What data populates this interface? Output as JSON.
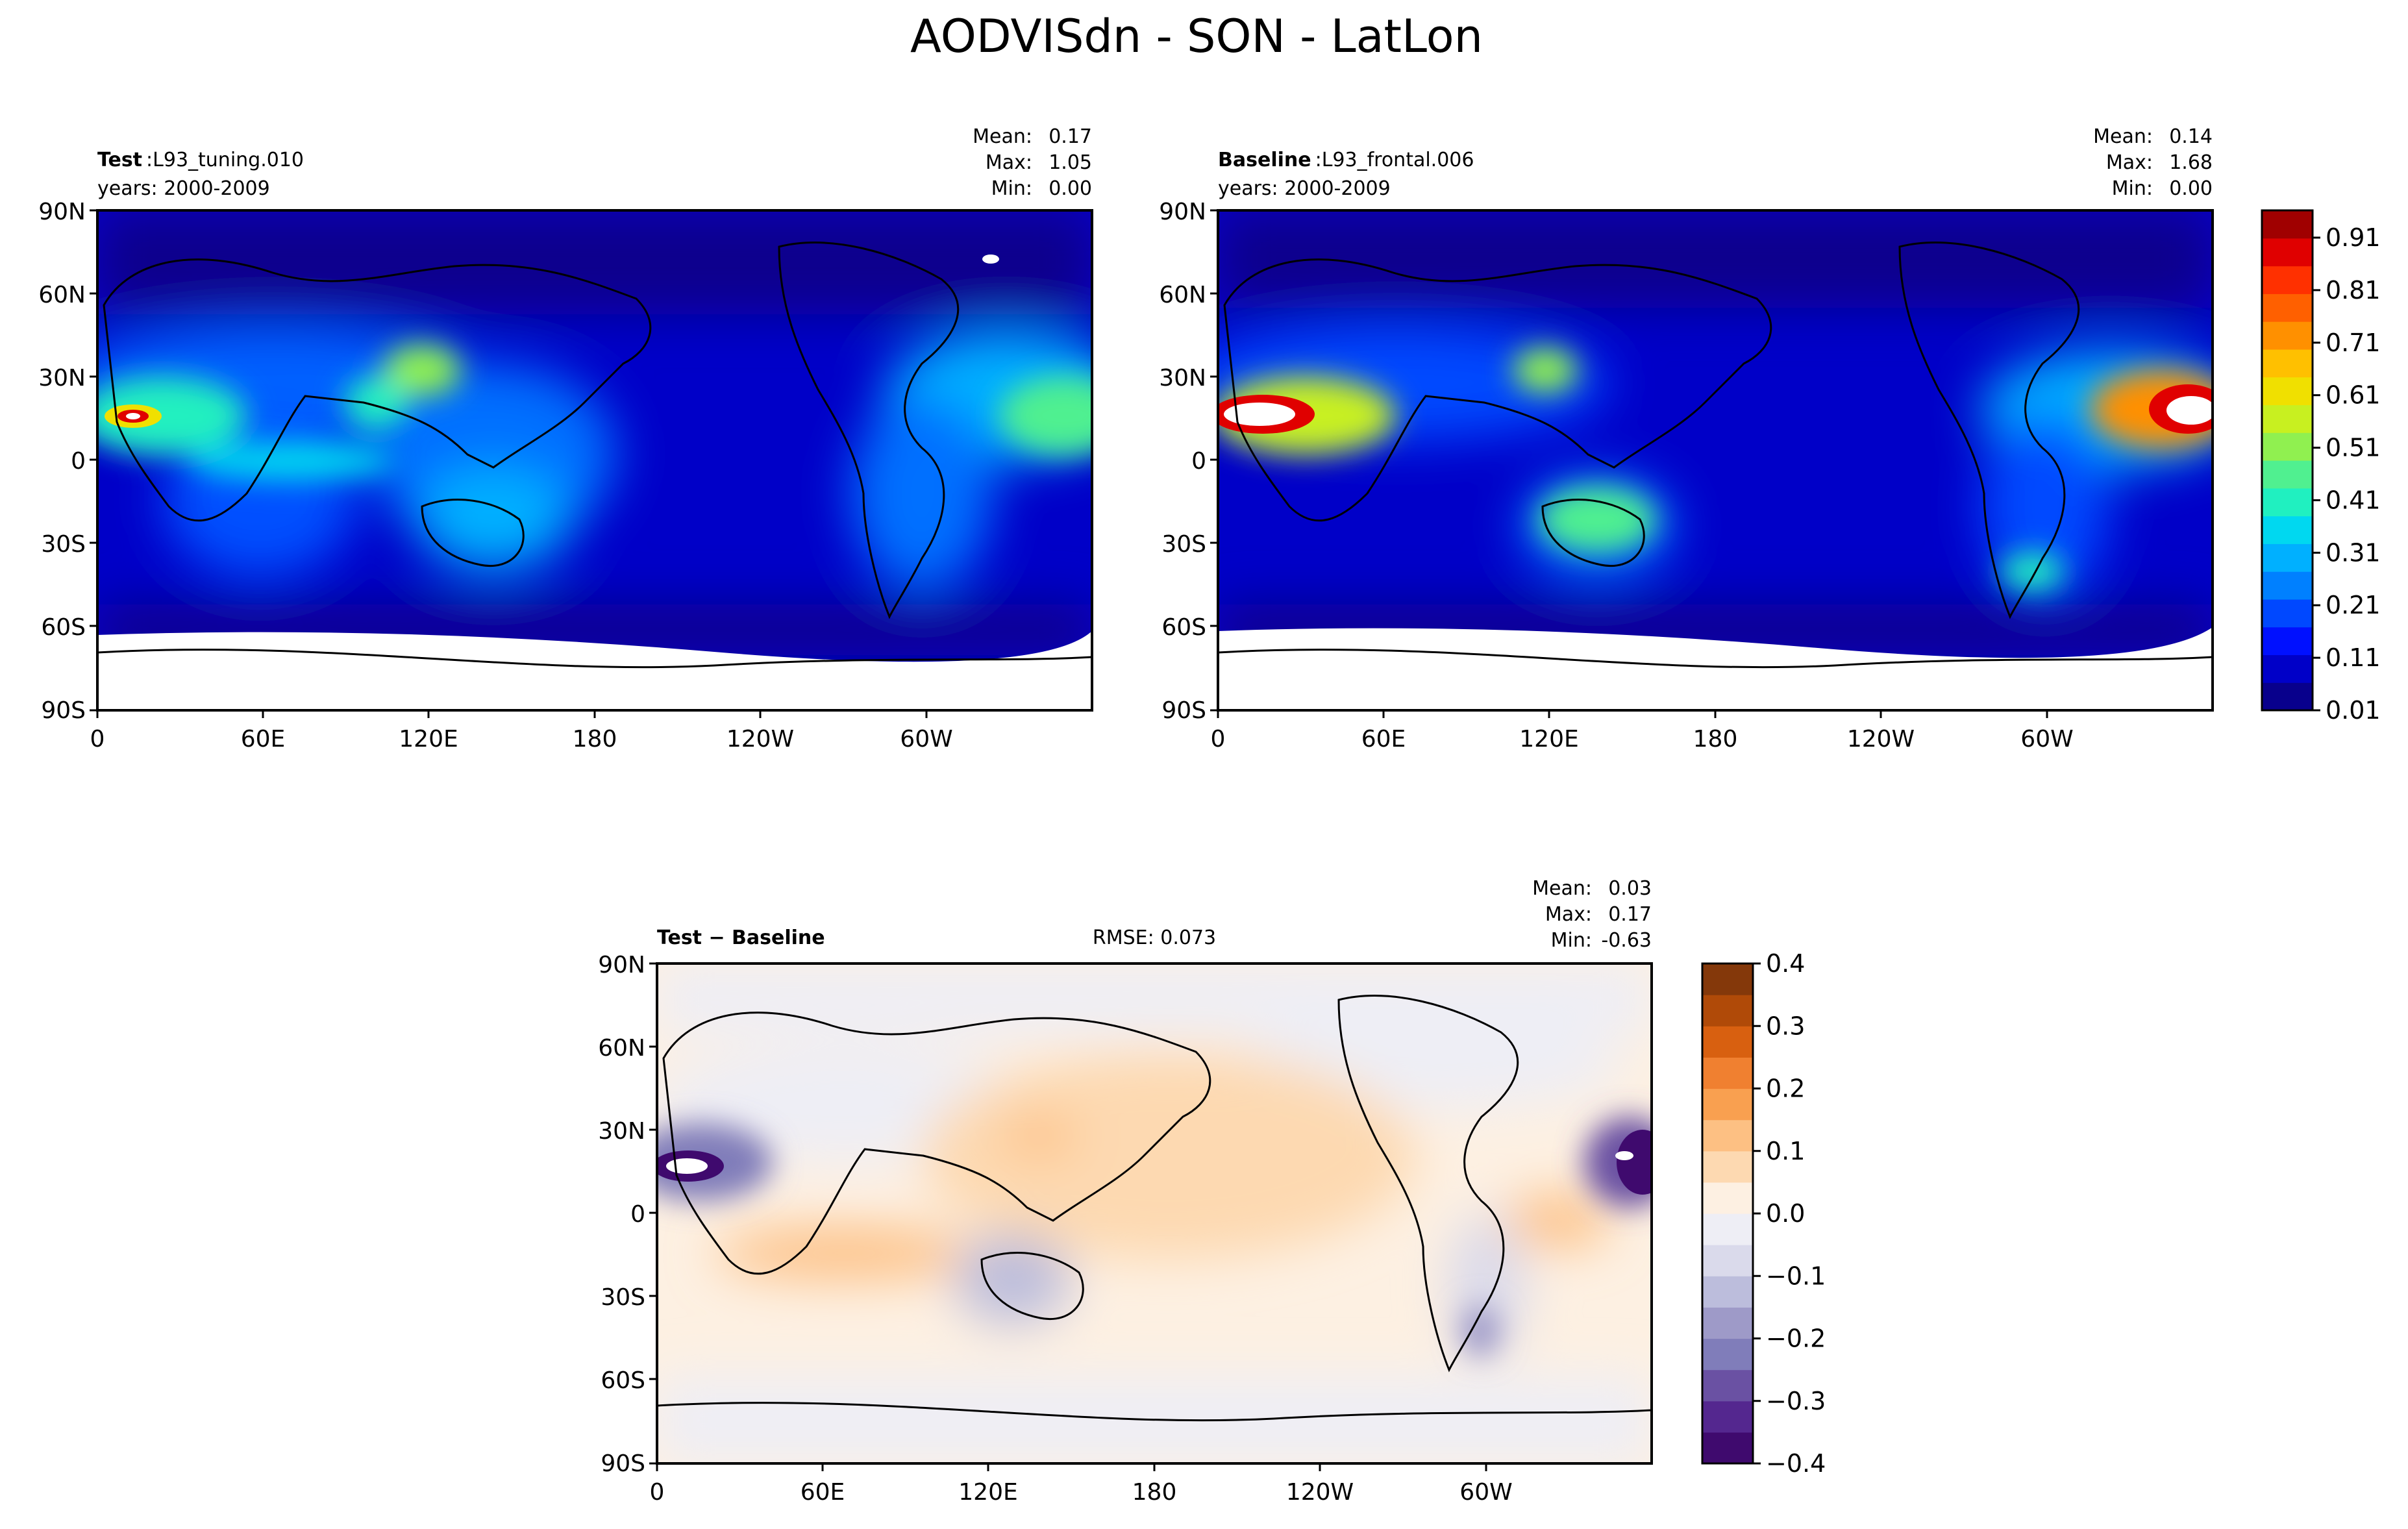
{
  "figure": {
    "title": "AODVISdn - SON - LatLon"
  },
  "panels": [
    {
      "label_bold": "Test",
      "label_rest": ":L93_tuning.010",
      "years": "years: 2000-2009",
      "stat_names": [
        "Mean:",
        "Max:",
        "Min:"
      ],
      "stat_values": [
        "0.17",
        "1.05",
        "0.00"
      ]
    },
    {
      "label_bold": "Baseline",
      "label_rest": ":L93_frontal.006",
      "years": "years: 2000-2009",
      "stat_names": [
        "Mean:",
        "Max:",
        "Min:"
      ],
      "stat_values": [
        "0.14",
        "1.68",
        "0.00"
      ]
    },
    {
      "label_bold": "Test − Baseline",
      "label_rest": "",
      "rmse": "RMSE: 0.073",
      "stat_names": [
        "Mean:",
        "Max:",
        "Min:"
      ],
      "stat_values": [
        "0.03",
        "0.17",
        "-0.63"
      ]
    }
  ],
  "axes": {
    "lat_ticks": [
      "90N",
      "60N",
      "30N",
      "0",
      "30S",
      "60S",
      "90S"
    ],
    "lon_ticks": [
      "0",
      "60E",
      "120E",
      "180",
      "120W",
      "60W"
    ]
  },
  "colorbars": {
    "main": {
      "ticks": [
        "0.91",
        "0.81",
        "0.71",
        "0.61",
        "0.51",
        "0.41",
        "0.31",
        "0.21",
        "0.11",
        "0.01"
      ],
      "colors": [
        "#08008c",
        "#0000c8",
        "#0010ff",
        "#0048ff",
        "#0080ff",
        "#00b0ff",
        "#00d8f0",
        "#20f0c0",
        "#50f090",
        "#90f050",
        "#c8f020",
        "#f0e000",
        "#ffc000",
        "#ff9000",
        "#ff6000",
        "#ff3000",
        "#e00000",
        "#a00000"
      ]
    },
    "diff": {
      "ticks": [
        "0.4",
        "0.3",
        "0.2",
        "0.1",
        "0.0",
        "−0.1",
        "−0.2",
        "−0.3",
        "−0.4"
      ],
      "colors": [
        "#3f0a6e",
        "#54278f",
        "#6a51a3",
        "#807dba",
        "#9e9ac8",
        "#bcbddc",
        "#dadaeb",
        "#eeeef5",
        "#fdf0e2",
        "#fdd9b1",
        "#fdc083",
        "#f9a050",
        "#f08030",
        "#d86010",
        "#b04a08",
        "#84380a"
      ]
    }
  },
  "chart_data": [
    {
      "type": "heatmap",
      "title": "Test : L93_tuning.010",
      "variable": "AODVISdn",
      "season": "SON",
      "xlabel": "",
      "ylabel": "",
      "xlim": [
        0,
        360
      ],
      "ylim": [
        -90,
        90
      ],
      "x_ticks": [
        "0",
        "60E",
        "120E",
        "180",
        "120W",
        "60W"
      ],
      "y_ticks": [
        "90N",
        "60N",
        "30N",
        "0",
        "30S",
        "60S",
        "90S"
      ],
      "mean": 0.17,
      "max": 1.05,
      "min": 0.0,
      "contour_levels": [
        0.01,
        0.06,
        0.11,
        0.16,
        0.21,
        0.26,
        0.31,
        0.36,
        0.41,
        0.46,
        0.51,
        0.56,
        0.61,
        0.66,
        0.71,
        0.76,
        0.81,
        0.86,
        0.91
      ]
    },
    {
      "type": "heatmap",
      "title": "Baseline : L93_frontal.006",
      "variable": "AODVISdn",
      "season": "SON",
      "xlim": [
        0,
        360
      ],
      "ylim": [
        -90,
        90
      ],
      "x_ticks": [
        "0",
        "60E",
        "120E",
        "180",
        "120W",
        "60W"
      ],
      "y_ticks": [
        "90N",
        "60N",
        "30N",
        "0",
        "30S",
        "60S",
        "90S"
      ],
      "mean": 0.14,
      "max": 1.68,
      "min": 0.0,
      "contour_levels": [
        0.01,
        0.06,
        0.11,
        0.16,
        0.21,
        0.26,
        0.31,
        0.36,
        0.41,
        0.46,
        0.51,
        0.56,
        0.61,
        0.66,
        0.71,
        0.76,
        0.81,
        0.86,
        0.91
      ]
    },
    {
      "type": "heatmap",
      "title": "Test − Baseline",
      "variable": "AODVISdn",
      "season": "SON",
      "xlim": [
        0,
        360
      ],
      "ylim": [
        -90,
        90
      ],
      "x_ticks": [
        "0",
        "60E",
        "120E",
        "180",
        "120W",
        "60W"
      ],
      "y_ticks": [
        "90N",
        "60N",
        "30N",
        "0",
        "30S",
        "60S",
        "90S"
      ],
      "rmse": 0.073,
      "mean": 0.03,
      "max": 0.17,
      "min": -0.63,
      "contour_levels": [
        -0.4,
        -0.35,
        -0.3,
        -0.25,
        -0.2,
        -0.15,
        -0.1,
        -0.05,
        0.0,
        0.05,
        0.1,
        0.15,
        0.2,
        0.25,
        0.3,
        0.35,
        0.4
      ]
    }
  ]
}
